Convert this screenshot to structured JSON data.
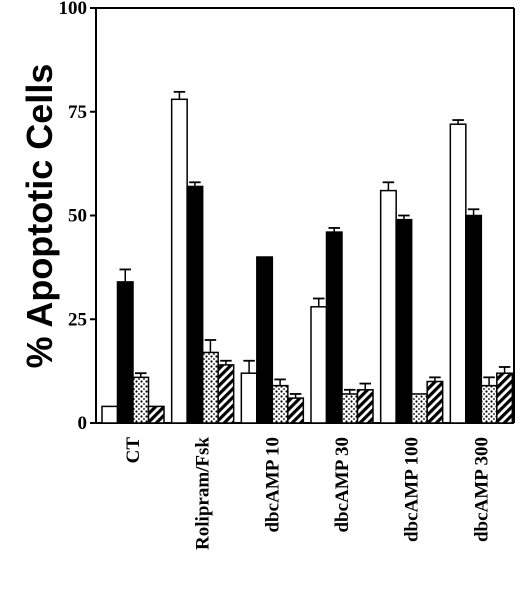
{
  "chart_data": {
    "type": "bar",
    "ylabel": "% Apoptotic Cells",
    "xlabel": "",
    "title": "",
    "ylim": [
      0,
      100
    ],
    "yticks": [
      0,
      25,
      50,
      75,
      100
    ],
    "grid": false,
    "categories": [
      "CT",
      "Rolipram/Fsk",
      "dbcAMP  10",
      "dbcAMP  30",
      "dbcAMP  100",
      "dbcAMP  300"
    ],
    "series": [
      {
        "pattern": "white",
        "values": [
          4,
          78,
          12,
          28,
          56,
          72
        ],
        "errors": [
          0,
          1.8,
          3,
          2,
          2,
          1
        ]
      },
      {
        "pattern": "black",
        "values": [
          34,
          57,
          40,
          46,
          49,
          50
        ],
        "errors": [
          3,
          1,
          0,
          1,
          1,
          1.5
        ]
      },
      {
        "pattern": "dotted",
        "values": [
          11,
          17,
          9,
          7,
          7,
          9
        ],
        "errors": [
          1,
          3,
          1.5,
          1,
          0,
          2
        ]
      },
      {
        "pattern": "striped",
        "values": [
          4,
          14,
          6,
          8,
          10,
          12
        ],
        "errors": [
          0,
          1,
          1,
          1.5,
          1,
          1.5
        ]
      }
    ]
  }
}
